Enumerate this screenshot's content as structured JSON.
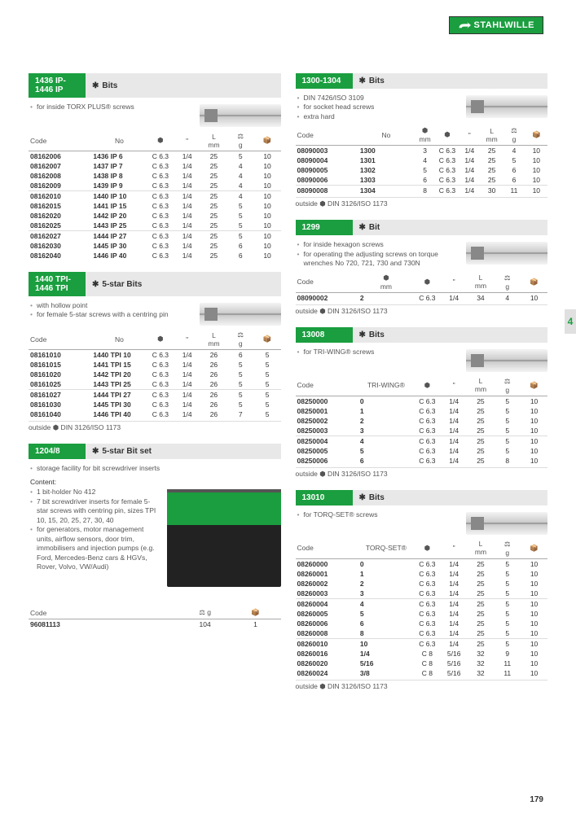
{
  "brand": "STAHLWILLE",
  "page_number": "179",
  "side_tab": "4",
  "outside_note": "outside ⬢  DIN 3126/ISO 1173",
  "accent": "#1a9e3f",
  "sections": {
    "s1": {
      "badge": "1436 IP-\n1446 IP",
      "title": "Bits",
      "desc": [
        "for inside TORX PLUS® screws"
      ],
      "cols": [
        "Code",
        "No",
        "⬢",
        "\"",
        "L mm",
        "⚖ g",
        "📦"
      ],
      "groups": [
        [
          [
            "08162006",
            "1436 IP 6",
            "C 6.3",
            "1/4",
            "25",
            "5",
            "10"
          ],
          [
            "08162007",
            "1437 IP 7",
            "C 6.3",
            "1/4",
            "25",
            "4",
            "10"
          ],
          [
            "08162008",
            "1438 IP 8",
            "C 6.3",
            "1/4",
            "25",
            "4",
            "10"
          ],
          [
            "08162009",
            "1439 IP 9",
            "C 6.3",
            "1/4",
            "25",
            "4",
            "10"
          ]
        ],
        [
          [
            "08162010",
            "1440 IP 10",
            "C 6.3",
            "1/4",
            "25",
            "4",
            "10"
          ],
          [
            "08162015",
            "1441 IP 15",
            "C 6.3",
            "1/4",
            "25",
            "5",
            "10"
          ],
          [
            "08162020",
            "1442 IP 20",
            "C 6.3",
            "1/4",
            "25",
            "5",
            "10"
          ],
          [
            "08162025",
            "1443 IP 25",
            "C 6.3",
            "1/4",
            "25",
            "5",
            "10"
          ]
        ],
        [
          [
            "08162027",
            "1444 IP 27",
            "C 6.3",
            "1/4",
            "25",
            "5",
            "10"
          ],
          [
            "08162030",
            "1445 IP 30",
            "C 6.3",
            "1/4",
            "25",
            "6",
            "10"
          ],
          [
            "08162040",
            "1446 IP 40",
            "C 6.3",
            "1/4",
            "25",
            "6",
            "10"
          ]
        ]
      ]
    },
    "s2": {
      "badge": "1440 TPI-\n1446 TPI",
      "title": "5-star Bits",
      "desc": [
        "with hollow point",
        "for female 5-star screws with a centring pin"
      ],
      "cols": [
        "Code",
        "No",
        "⬢",
        "\"",
        "L mm",
        "⚖ g",
        "📦"
      ],
      "groups": [
        [
          [
            "08161010",
            "1440 TPI 10",
            "C 6.3",
            "1/4",
            "26",
            "6",
            "5"
          ],
          [
            "08161015",
            "1441 TPI 15",
            "C 6.3",
            "1/4",
            "26",
            "5",
            "5"
          ],
          [
            "08161020",
            "1442 TPI 20",
            "C 6.3",
            "1/4",
            "26",
            "5",
            "5"
          ],
          [
            "08161025",
            "1443 TPI 25",
            "C 6.3",
            "1/4",
            "26",
            "5",
            "5"
          ]
        ],
        [
          [
            "08161027",
            "1444 TPI 27",
            "C 6.3",
            "1/4",
            "26",
            "5",
            "5"
          ],
          [
            "08161030",
            "1445 TPI 30",
            "C 6.3",
            "1/4",
            "26",
            "5",
            "5"
          ],
          [
            "08161040",
            "1446 TPI 40",
            "C 6.3",
            "1/4",
            "26",
            "7",
            "5"
          ]
        ]
      ],
      "outside": true
    },
    "s3": {
      "badge": "1204/8",
      "title": "5-star Bit set",
      "desc": [
        "storage facility for bit screwdriver inserts"
      ],
      "content_label": "Content:",
      "content": [
        "1 bit-holder No 412",
        "7 bit screwdriver inserts for female 5-star screws with centring pin, sizes TPI 10, 15, 20, 25, 27, 30, 40",
        "for generators, motor management units, airflow sensors, door trim, immobilisers and injection pumps (e.g. Ford, Mercedes-Benz cars & HGVs, Rover, Volvo, VW/Audi)"
      ],
      "simple_cols": [
        "Code",
        "⚖ g",
        "📦"
      ],
      "simple_row": [
        "96081113",
        "104",
        "1"
      ]
    },
    "s4": {
      "badge": "1300-1304",
      "title": "Bits",
      "desc": [
        "DIN 7426/ISO 3109",
        "for socket head screws",
        "extra hard"
      ],
      "cols": [
        "Code",
        "No",
        "⬢ mm",
        "⬢",
        "\"",
        "L mm",
        "⚖ g",
        "📦"
      ],
      "groups": [
        [
          [
            "08090003",
            "1300",
            "3",
            "C 6.3",
            "1/4",
            "25",
            "4",
            "10"
          ],
          [
            "08090004",
            "1301",
            "4",
            "C 6.3",
            "1/4",
            "25",
            "5",
            "10"
          ],
          [
            "08090005",
            "1302",
            "5",
            "C 6.3",
            "1/4",
            "25",
            "6",
            "10"
          ],
          [
            "08090006",
            "1303",
            "6",
            "C 6.3",
            "1/4",
            "25",
            "6",
            "10"
          ]
        ],
        [
          [
            "08090008",
            "1304",
            "8",
            "C 6.3",
            "1/4",
            "30",
            "11",
            "10"
          ]
        ]
      ],
      "outside": true
    },
    "s5": {
      "badge": "1299",
      "title": "Bit",
      "desc": [
        "for inside hexagon screws",
        "for operating the adjusting screws on torque wrenches No 720, 721, 730 and 730N"
      ],
      "cols": [
        "Code",
        "⬢ mm",
        "⬢",
        "\"",
        "L mm",
        "⚖ g",
        "📦"
      ],
      "groups": [
        [
          [
            "08090002",
            "2",
            "C 6.3",
            "1/4",
            "34",
            "4",
            "10"
          ]
        ]
      ],
      "outside": true
    },
    "s6": {
      "badge": "13008",
      "title": "Bits",
      "desc": [
        "for TRI-WING® screws"
      ],
      "cols": [
        "Code",
        "TRI-WING®",
        "⬢",
        "\"",
        "L mm",
        "⚖ g",
        "📦"
      ],
      "groups": [
        [
          [
            "08250000",
            "0",
            "C 6.3",
            "1/4",
            "25",
            "5",
            "10"
          ],
          [
            "08250001",
            "1",
            "C 6.3",
            "1/4",
            "25",
            "5",
            "10"
          ],
          [
            "08250002",
            "2",
            "C 6.3",
            "1/4",
            "25",
            "5",
            "10"
          ],
          [
            "08250003",
            "3",
            "C 6.3",
            "1/4",
            "25",
            "5",
            "10"
          ]
        ],
        [
          [
            "08250004",
            "4",
            "C 6.3",
            "1/4",
            "25",
            "5",
            "10"
          ],
          [
            "08250005",
            "5",
            "C 6.3",
            "1/4",
            "25",
            "5",
            "10"
          ],
          [
            "08250006",
            "6",
            "C 6.3",
            "1/4",
            "25",
            "8",
            "10"
          ]
        ]
      ],
      "outside": true
    },
    "s7": {
      "badge": "13010",
      "title": "Bits",
      "desc": [
        "for TORQ-SET® screws"
      ],
      "cols": [
        "Code",
        "TORQ-SET®",
        "⬢",
        "\"",
        "L mm",
        "⚖ g",
        "📦"
      ],
      "groups": [
        [
          [
            "08260000",
            "0",
            "C 6.3",
            "1/4",
            "25",
            "5",
            "10"
          ],
          [
            "08260001",
            "1",
            "C 6.3",
            "1/4",
            "25",
            "5",
            "10"
          ],
          [
            "08260002",
            "2",
            "C 6.3",
            "1/4",
            "25",
            "5",
            "10"
          ],
          [
            "08260003",
            "3",
            "C 6.3",
            "1/4",
            "25",
            "5",
            "10"
          ]
        ],
        [
          [
            "08260004",
            "4",
            "C 6.3",
            "1/4",
            "25",
            "5",
            "10"
          ],
          [
            "08260005",
            "5",
            "C 6.3",
            "1/4",
            "25",
            "5",
            "10"
          ],
          [
            "08260006",
            "6",
            "C 6.3",
            "1/4",
            "25",
            "5",
            "10"
          ],
          [
            "08260008",
            "8",
            "C 6.3",
            "1/4",
            "25",
            "5",
            "10"
          ]
        ],
        [
          [
            "08260010",
            "10",
            "C 6.3",
            "1/4",
            "25",
            "5",
            "10"
          ],
          [
            "08260016",
            "1/4",
            "C 8",
            "5/16",
            "32",
            "9",
            "10"
          ],
          [
            "08260020",
            "5/16",
            "C 8",
            "5/16",
            "32",
            "11",
            "10"
          ],
          [
            "08260024",
            "3/8",
            "C 8",
            "5/16",
            "32",
            "11",
            "10"
          ]
        ]
      ],
      "outside": true
    }
  }
}
